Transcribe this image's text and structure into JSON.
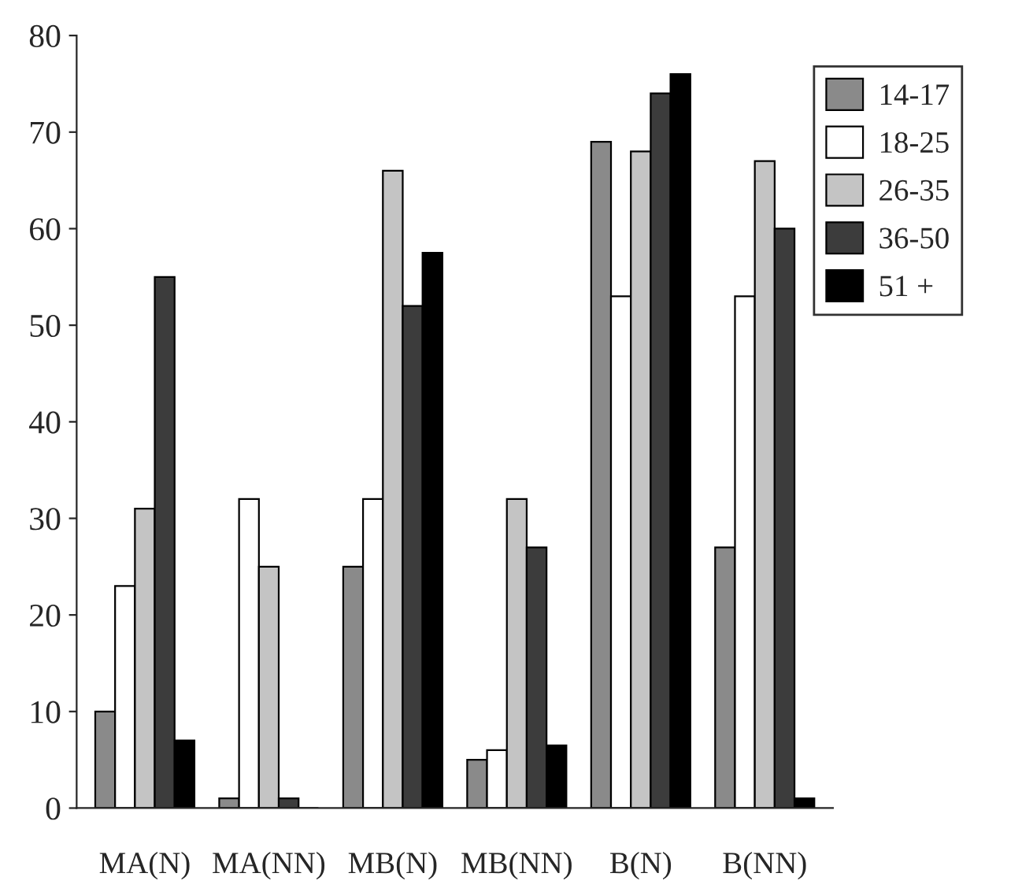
{
  "chart_data": {
    "type": "bar",
    "categories": [
      "MA(N)",
      "MA(NN)",
      "MB(N)",
      "MB(NN)",
      "B(N)",
      "B(NN)"
    ],
    "series": [
      {
        "name": "14-17",
        "color": "#8a8a8a",
        "values": [
          10,
          1,
          25,
          5,
          69,
          27
        ]
      },
      {
        "name": "18-25",
        "color": "#ffffff",
        "values": [
          23,
          32,
          32,
          6,
          53,
          53
        ]
      },
      {
        "name": "26-35",
        "color": "#c4c4c4",
        "values": [
          31,
          25,
          66,
          32,
          68,
          67
        ]
      },
      {
        "name": "36-50",
        "color": "#3c3c3c",
        "values": [
          55,
          1,
          52,
          27,
          74,
          60
        ]
      },
      {
        "name": "51 +",
        "color": "#000000",
        "values": [
          7,
          0,
          57.5,
          6.5,
          76,
          1
        ]
      }
    ],
    "ylim": [
      0,
      80
    ],
    "yticks": [
      0,
      10,
      20,
      30,
      40,
      50,
      60,
      70,
      80
    ],
    "grid": false,
    "legend": "top right"
  }
}
